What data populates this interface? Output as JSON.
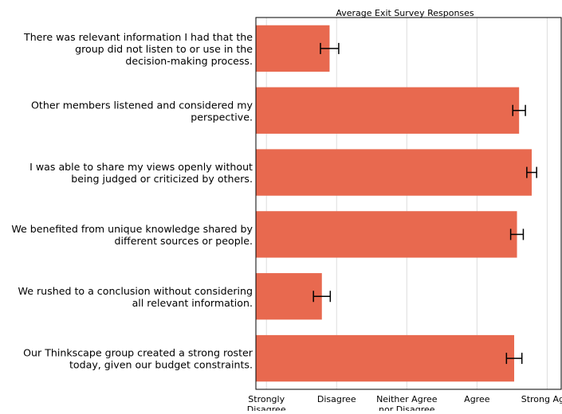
{
  "chart_data": {
    "type": "bar",
    "orientation": "horizontal",
    "title": "Average Exit Survey Responses",
    "xlabel": "",
    "ylabel": "",
    "xlim": [
      0.85,
      5.2
    ],
    "grid": "vertical",
    "bar_color": "#e8694f",
    "errorbar_color": "#000000",
    "grid_color": "#dddddd",
    "tick_labels": [
      {
        "value": 1,
        "lines": [
          "Strongly",
          "Disagree"
        ]
      },
      {
        "value": 2,
        "lines": [
          "Disagree"
        ]
      },
      {
        "value": 3,
        "lines": [
          "Neither Agree",
          "nor Disagree"
        ]
      },
      {
        "value": 4,
        "lines": [
          "Agree"
        ]
      },
      {
        "value": 5,
        "lines": [
          "Strong Agre"
        ]
      }
    ],
    "categories": [
      [
        "There was relevant information I had that the",
        "group did not listen to or use in the",
        "decision-making process."
      ],
      [
        "Other members listened and considered my",
        "perspective."
      ],
      [
        "I was able to share my views openly without",
        "being judged or criticized by others."
      ],
      [
        "We benefited from unique knowledge shared by",
        "different sources or people."
      ],
      [
        "We rushed to a conclusion without considering",
        "all relevant information."
      ],
      [
        "Our Thinkscape group created a strong roster",
        "today, given our budget constraints."
      ]
    ],
    "values": [
      1.9,
      4.6,
      4.78,
      4.57,
      1.79,
      4.53
    ],
    "errors": [
      0.13,
      0.09,
      0.07,
      0.09,
      0.12,
      0.11
    ]
  }
}
